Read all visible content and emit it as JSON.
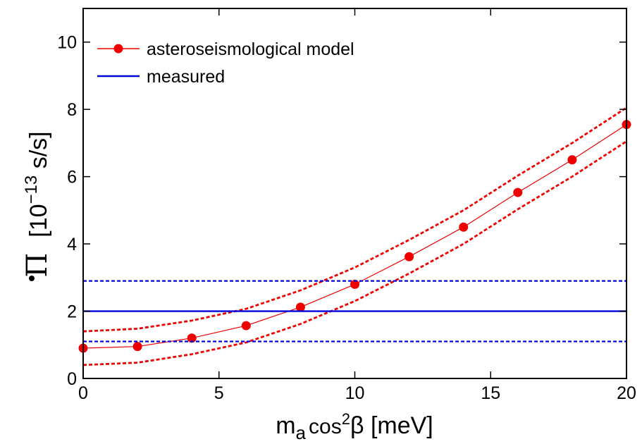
{
  "chart_data": {
    "type": "line",
    "xlabel": {
      "main": "m",
      "sub": "a",
      "mid": "cos",
      "sup": "2",
      "tail": "β  [meV]"
    },
    "ylabel": {
      "symbol": "Π",
      "pre": "[10",
      "sup": "−13",
      "post": " s/s]"
    },
    "xlim": [
      0,
      20
    ],
    "ylim": [
      0,
      11
    ],
    "xticks": [
      0,
      5,
      10,
      15,
      20
    ],
    "yticks": [
      0,
      2,
      4,
      6,
      8,
      10
    ],
    "legend_position": "top-left",
    "series": [
      {
        "name": "asteroseismological model",
        "color": "#ee0000",
        "marker": "circle",
        "x": [
          0,
          2,
          4,
          6,
          8,
          10,
          12,
          14,
          16,
          18,
          20
        ],
        "y": [
          0.9,
          0.95,
          1.2,
          1.57,
          2.12,
          2.8,
          3.62,
          4.5,
          5.53,
          6.5,
          7.55
        ]
      },
      {
        "name": "",
        "role": "model-upper-bound",
        "color": "#ee0000",
        "style": "dashed",
        "x": [
          0,
          2,
          4,
          6,
          8,
          10,
          12,
          14,
          16,
          18,
          20
        ],
        "y": [
          1.4,
          1.48,
          1.72,
          2.07,
          2.62,
          3.3,
          4.12,
          5.0,
          6.03,
          7.0,
          8.05
        ]
      },
      {
        "name": "",
        "role": "model-lower-bound",
        "color": "#ee0000",
        "style": "dashed",
        "x": [
          0,
          2,
          4,
          6,
          8,
          10,
          12,
          14,
          16,
          18,
          20
        ],
        "y": [
          0.4,
          0.47,
          0.72,
          1.07,
          1.62,
          2.3,
          3.12,
          4.0,
          5.03,
          6.0,
          7.05
        ]
      },
      {
        "name": "measured",
        "color": "#0000dd",
        "style": "solid",
        "y_const": 2.0
      },
      {
        "name": "",
        "role": "measured-upper-bound",
        "color": "#0000dd",
        "style": "dashed",
        "y_const": 2.9
      },
      {
        "name": "",
        "role": "measured-lower-bound",
        "color": "#0000dd",
        "style": "dashed",
        "y_const": 1.1
      }
    ]
  }
}
